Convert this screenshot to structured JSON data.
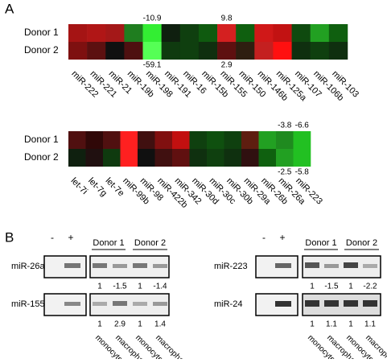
{
  "panel_a": {
    "label": "A",
    "heatmaps": [
      {
        "rows": [
          "Donor 1",
          "Donor 2"
        ],
        "columns": [
          "miR-222",
          "miR-221",
          "miR-21",
          "miR-19b",
          "miR-198",
          "miR-191",
          "miR-16",
          "miR-15b",
          "miR-155",
          "miR-150",
          "miR-146b",
          "miR-125a",
          "miR-107",
          "miR-106b",
          "miR-103"
        ],
        "colors": [
          [
            "#a51414",
            "#b01616",
            "#a41818",
            "#1f7d1f",
            "#33ee33",
            "#0f1f0f",
            "#0f3f0f",
            "#0f5a0f",
            "#d42020",
            "#0f5f0f",
            "#d01818",
            "#c21212",
            "#0f4a0f",
            "#22a022",
            "#0f5f0f"
          ],
          [
            "#7e1010",
            "#5c1010",
            "#101010",
            "#4e1010",
            "#55ff55",
            "#0f3a0f",
            "#0f3f0f",
            "#0f2f0f",
            "#5e1010",
            "#2e1e10",
            "#c42020",
            "#ff1010",
            "#0f2f0f",
            "#0f3f0f",
            "#0f2f0f"
          ]
        ],
        "values_above": [
          null,
          null,
          null,
          null,
          "-10.9",
          null,
          null,
          null,
          "9.8",
          null,
          null,
          null,
          null,
          null,
          null
        ],
        "values_below": [
          null,
          null,
          null,
          null,
          "-59.1",
          null,
          null,
          null,
          "2.9",
          null,
          null,
          null,
          null,
          null,
          null
        ]
      },
      {
        "rows": [
          "Donor 1",
          "Donor 2"
        ],
        "columns": [
          "let-7i",
          "let-7g",
          "let-7e",
          "miR-99b",
          "miR-98",
          "miR-422b",
          "miR-342",
          "miR-30d",
          "miR-30c",
          "miR-30b",
          "miR-29a",
          "miR-26b",
          "miR-26a",
          "miR-223"
        ],
        "colors": [
          [
            "#501010",
            "#300808",
            "#501010",
            "#ff2020",
            "#401010",
            "#801010",
            "#c21010",
            "#0f400f",
            "#0f500f",
            "#0f400f",
            "#5e1e10",
            "#22a022",
            "#1f8a1f",
            "#22c022"
          ],
          [
            "#0f200f",
            "#201010",
            "#0f3a0f",
            "#ff2020",
            "#101010",
            "#401010",
            "#601010",
            "#0f300f",
            "#0f400f",
            "#0f300f",
            "#301010",
            "#0f600f",
            "#22a022",
            "#22c022"
          ]
        ],
        "values_above": [
          null,
          null,
          null,
          null,
          null,
          null,
          null,
          null,
          null,
          null,
          null,
          null,
          "-3.8",
          "-6.6"
        ],
        "values_below": [
          null,
          null,
          null,
          null,
          null,
          null,
          null,
          null,
          null,
          null,
          null,
          null,
          "-2.5",
          "-5.8"
        ]
      }
    ]
  },
  "panel_b": {
    "label": "B",
    "lane_signs": [
      "-",
      "+"
    ],
    "donors": [
      "Donor 1",
      "Donor 2"
    ],
    "cell_types": [
      "monocyte",
      "macrophage",
      "monocyte",
      "macrophage"
    ],
    "blots": [
      {
        "rows": [
          {
            "name": "miR-26a",
            "values": [
              "1",
              "-1.5",
              "1",
              "-1.4"
            ]
          },
          {
            "name": "miR-155",
            "values": [
              "1",
              "2.9",
              "1",
              "1.4"
            ]
          }
        ]
      },
      {
        "rows": [
          {
            "name": "miR-223",
            "values": [
              "1",
              "-1.5",
              "1",
              "-2.2"
            ]
          },
          {
            "name": "miR-24",
            "values": [
              "1",
              "1.1",
              "1",
              "1.1"
            ]
          }
        ]
      }
    ]
  }
}
